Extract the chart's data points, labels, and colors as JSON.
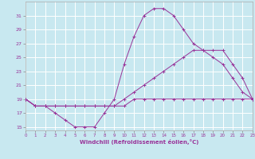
{
  "xlabel": "Windchill (Refroidissement éolien,°C)",
  "background_color": "#c8e8f0",
  "grid_color": "#b0d8d8",
  "line_color": "#993399",
  "hours": [
    0,
    1,
    2,
    3,
    4,
    5,
    6,
    7,
    8,
    9,
    10,
    11,
    12,
    13,
    14,
    15,
    16,
    17,
    18,
    19,
    20,
    21,
    22,
    23
  ],
  "line1": [
    19,
    18,
    18,
    17,
    16,
    15,
    15,
    15,
    17,
    19,
    24,
    28,
    31,
    32,
    32,
    31,
    29,
    27,
    26,
    25,
    24,
    22,
    20,
    19
  ],
  "line2": [
    19,
    18,
    18,
    18,
    18,
    18,
    18,
    18,
    18,
    18,
    19,
    20,
    21,
    22,
    23,
    24,
    25,
    26,
    26,
    26,
    26,
    24,
    22,
    19
  ],
  "line3": [
    19,
    18,
    18,
    18,
    18,
    18,
    18,
    18,
    18,
    18,
    18,
    19,
    19,
    19,
    19,
    19,
    19,
    19,
    19,
    19,
    19,
    19,
    19,
    19
  ],
  "ylim": [
    14.5,
    33
  ],
  "yticks": [
    15,
    17,
    19,
    21,
    23,
    25,
    27,
    29,
    31
  ],
  "xlim": [
    0,
    23
  ],
  "xticks": [
    0,
    1,
    2,
    3,
    4,
    5,
    6,
    7,
    8,
    9,
    10,
    11,
    12,
    13,
    14,
    15,
    16,
    17,
    18,
    19,
    20,
    21,
    22,
    23
  ]
}
